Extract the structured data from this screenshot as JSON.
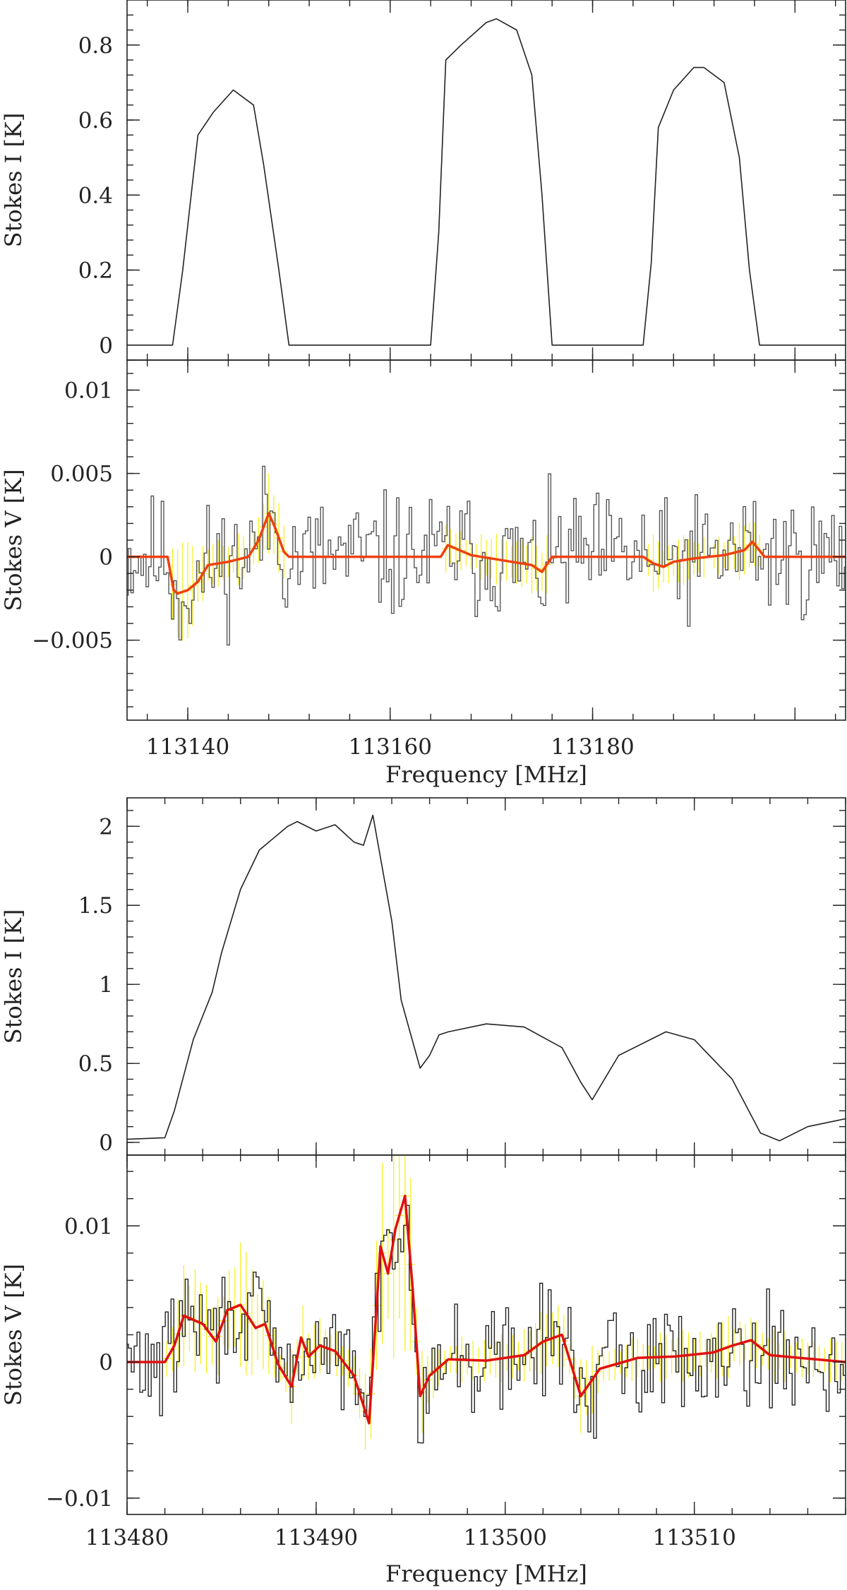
{
  "chart_data": [
    {
      "id": "p1",
      "type": "line",
      "ylabel": "Stokes I [K]",
      "xlim": [
        113134,
        113205
      ],
      "ylim": [
        -0.04,
        0.92
      ],
      "xticks": [
        113140,
        113160,
        113180,
        113200
      ],
      "xtick_labels": [],
      "yticks": [
        0,
        0.2,
        0.4,
        0.6,
        0.8
      ],
      "ytick_labels": [
        "0",
        "0.2",
        "0.4",
        "0.6",
        "0.8"
      ],
      "series": [
        {
          "name": "Stokes I",
          "color": "#222222",
          "x": [
            113134,
            113138.5,
            113139.5,
            113141,
            113142.5,
            113144.5,
            113146.5,
            113147.5,
            113149,
            113150,
            113151,
            113164,
            113164.8,
            113165.5,
            113167,
            113169.5,
            113170.5,
            113172.5,
            113174,
            113175,
            113176,
            113185,
            113185.8,
            113186.5,
            113188,
            113190,
            113191,
            113193,
            113194.5,
            113195.5,
            113196.5,
            113205
          ],
          "y": [
            0.0,
            0.0,
            0.2,
            0.56,
            0.62,
            0.68,
            0.64,
            0.48,
            0.2,
            0.0,
            0.0,
            0.0,
            0.3,
            0.76,
            0.8,
            0.86,
            0.87,
            0.84,
            0.72,
            0.4,
            0.0,
            0.0,
            0.22,
            0.58,
            0.68,
            0.74,
            0.74,
            0.7,
            0.5,
            0.2,
            0.0,
            0.0
          ]
        }
      ]
    },
    {
      "id": "p2",
      "type": "line",
      "ylabel": "Stokes V [K]",
      "xlabel": "Frequency  [MHz]",
      "xlim": [
        113134,
        113205
      ],
      "ylim": [
        -0.0098,
        0.0118
      ],
      "xticks": [
        113140,
        113160,
        113180,
        113200
      ],
      "xtick_labels": [
        "113140",
        "113160",
        "113180"
      ],
      "yticks": [
        -0.005,
        0,
        0.005,
        0.01
      ],
      "ytick_labels": [
        "−0.005",
        "0",
        "0.005",
        "0.01"
      ],
      "series": [
        {
          "name": "Stokes V (data)",
          "color": "#555555",
          "x_start": 113134,
          "x_step": 0.25,
          "noise_rms": 0.0026,
          "seed": 11
        },
        {
          "name": "Fit",
          "color": "#ef4010",
          "x": [
            113134,
            113138,
            113138.6,
            113139,
            113140,
            113141,
            113142,
            113144,
            113146,
            113147,
            113148,
            113148.6,
            113149.5,
            113150,
            113165,
            113165.7,
            113168,
            113172,
            113174,
            113175,
            113176,
            113185,
            113186,
            113187,
            113188,
            113190,
            113193,
            113195,
            113195.8,
            113197,
            113205
          ],
          "y": [
            0,
            0,
            -0.002,
            -0.0022,
            -0.002,
            -0.0015,
            -0.0005,
            -0.0003,
            0,
            0.001,
            0.0026,
            0.0018,
            0.0003,
            0,
            0,
            0.0007,
            0.0001,
            -0.0003,
            -0.0005,
            -0.0009,
            0,
            0,
            -0.0004,
            -0.0006,
            -0.0003,
            -0.0001,
            0.0001,
            0.0004,
            0.0009,
            0,
            0
          ]
        }
      ],
      "error_band_color": "#f5ee14"
    },
    {
      "id": "p3",
      "type": "line",
      "ylabel": "Stokes I [K]",
      "xlim": [
        113480,
        113518
      ],
      "ylim": [
        -0.08,
        2.18
      ],
      "xticks": [
        113480,
        113490,
        113500,
        113510
      ],
      "xtick_labels": [],
      "yticks": [
        0,
        0.5,
        1,
        1.5,
        2
      ],
      "ytick_labels": [
        "0",
        "0.5",
        "1",
        "1.5",
        "2"
      ],
      "series": [
        {
          "name": "Stokes I",
          "color": "#222222",
          "x": [
            113480,
            113482,
            113482.5,
            113483.5,
            113484.5,
            113485,
            113486,
            113487,
            113488.5,
            113489,
            113490,
            113491,
            113492,
            113492.5,
            113493,
            113494,
            113494.5,
            113495.5,
            113496,
            113496.5,
            113497,
            113499,
            113501,
            113503,
            113504,
            113504.6,
            113506,
            113508.5,
            113510,
            113512,
            113513.5,
            113514.5,
            113516,
            113518
          ],
          "y": [
            0.02,
            0.03,
            0.2,
            0.65,
            0.95,
            1.2,
            1.6,
            1.85,
            2.0,
            2.03,
            1.97,
            2.01,
            1.9,
            1.88,
            2.07,
            1.4,
            0.9,
            0.47,
            0.55,
            0.68,
            0.7,
            0.75,
            0.73,
            0.6,
            0.38,
            0.27,
            0.55,
            0.7,
            0.65,
            0.4,
            0.06,
            0.01,
            0.1,
            0.15
          ]
        }
      ]
    },
    {
      "id": "p4",
      "type": "line",
      "ylabel": "Stokes V [K]",
      "xlabel": "Frequency [MHz]",
      "xlim": [
        113480,
        113518
      ],
      "ylim": [
        -0.0112,
        0.0152
      ],
      "xticks": [
        113480,
        113490,
        113500,
        113510
      ],
      "xtick_labels": [
        "113480",
        "113490",
        "113500",
        "113510"
      ],
      "yticks": [
        -0.01,
        0,
        0.01
      ],
      "ytick_labels": [
        "−0.01",
        "0",
        "0.01"
      ],
      "series": [
        {
          "name": "Stokes V (data)",
          "color": "#222222",
          "x_start": 113480,
          "x_step": 0.15,
          "noise_rms": 0.0028,
          "seed": 29
        },
        {
          "name": "Fit",
          "color": "#e01010",
          "x": [
            113480,
            113482,
            113482.5,
            113483,
            113484,
            113484.7,
            113485.3,
            113486,
            113486.8,
            113487.3,
            113488,
            113488.7,
            113489.2,
            113489.6,
            113490.2,
            113491,
            113492,
            113492.8,
            113493.4,
            113493.8,
            113494.2,
            113494.7,
            113495.1,
            113495.5,
            113496,
            113497,
            113499,
            113501,
            113502,
            113503,
            113504,
            113505,
            113507,
            113509,
            113511,
            113512,
            113513,
            113514,
            113518
          ],
          "y": [
            0,
            0,
            0.0012,
            0.0034,
            0.0028,
            0.0015,
            0.0038,
            0.0042,
            0.0025,
            0.0028,
            -0.0002,
            -0.0018,
            0.0018,
            0.0004,
            0.0012,
            0.0008,
            -0.001,
            -0.0045,
            0.0085,
            0.0065,
            0.0098,
            0.0122,
            0.0055,
            -0.0025,
            -0.001,
            0.0002,
            0.0001,
            0.0005,
            0.0015,
            0.002,
            -0.0025,
            -0.0005,
            0.0003,
            0.0004,
            0.0007,
            0.0012,
            0.0016,
            0.0005,
            0
          ]
        }
      ],
      "error_band_color": "#f5ee14"
    }
  ]
}
